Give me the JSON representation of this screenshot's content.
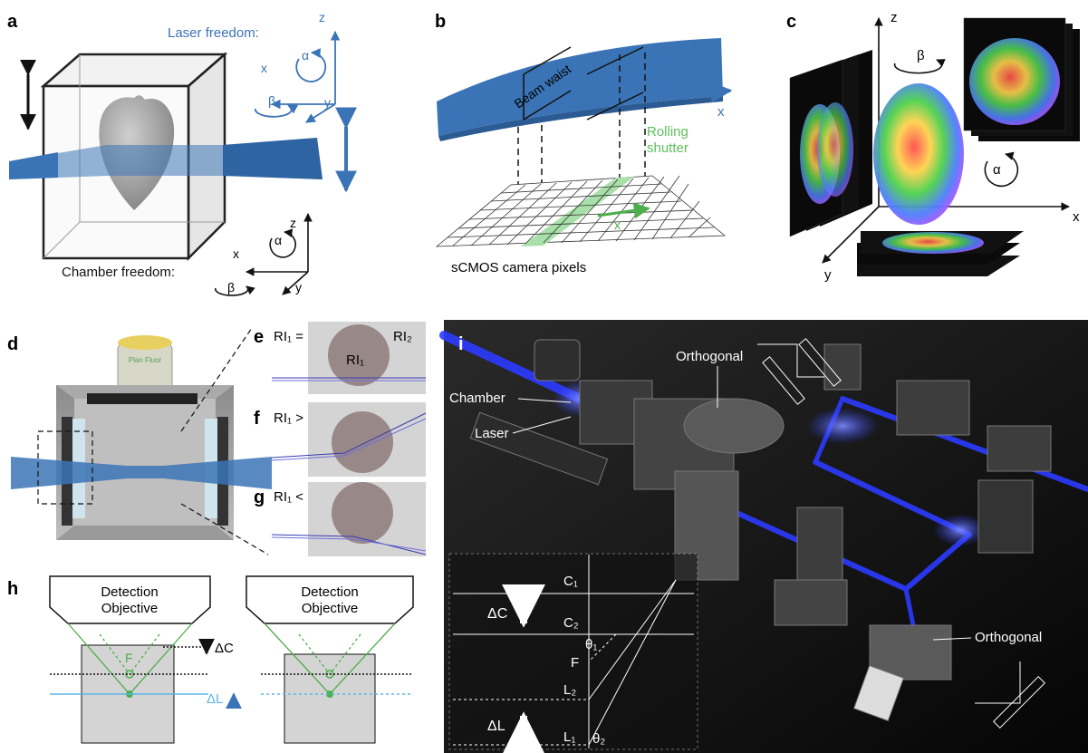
{
  "panels": {
    "a": {
      "letter": "a",
      "laser_freedom": "Laser freedom:",
      "chamber_freedom": "Chamber freedom:",
      "axis_z": "z",
      "axis_x": "x",
      "axis_y": "y",
      "alpha": "α",
      "beta": "β"
    },
    "b": {
      "letter": "b",
      "beam_waist": "Beam waist",
      "rolling": "Rolling",
      "shutter": "shutter",
      "axis_x": "x",
      "camera_pixels": "sCMOS camera pixels"
    },
    "c": {
      "letter": "c",
      "axis_z": "z",
      "axis_x": "x",
      "axis_y": "y",
      "alpha": "α",
      "beta": "β"
    },
    "d": {
      "letter": "d",
      "objective_text": "Plan Fluor"
    },
    "e": {
      "letter": "e",
      "label": "RI₁ = RI₂",
      "ri2": "RI₂",
      "ri1": "RI₁"
    },
    "f": {
      "letter": "f",
      "label": "RI₁ > RI₂"
    },
    "g": {
      "letter": "g",
      "label": "RI₁ < RI₂"
    },
    "h": {
      "letter": "h",
      "detection": "Detection",
      "objective": "Objective",
      "F": "F",
      "delta_c": "ΔC",
      "delta_l": "ΔL"
    },
    "i": {
      "letter": "i",
      "orthogonal_top": "Orthogonal",
      "orthogonal_bottom": "Orthogonal",
      "chamber": "Chamber",
      "laser": "Laser",
      "C1": "C₁",
      "C2": "C₂",
      "F": "F",
      "L2": "L₂",
      "L1": "L₁",
      "theta1": "θ₁",
      "theta2": "θ₂",
      "delta_c": "ΔC",
      "delta_l": "ΔL"
    }
  },
  "colors": {
    "laser_blue": "#3b74b6",
    "beam_dark": "#2f5f98",
    "green": "#5cbf5c",
    "light_green": "#a9e0a9",
    "cyan_line": "#5bb5e8",
    "cell_brown": "#7a5f5f",
    "panel_grey": "#d4d4d4",
    "dark_bg": "#141414",
    "laser_glow": "#2b3bff"
  }
}
